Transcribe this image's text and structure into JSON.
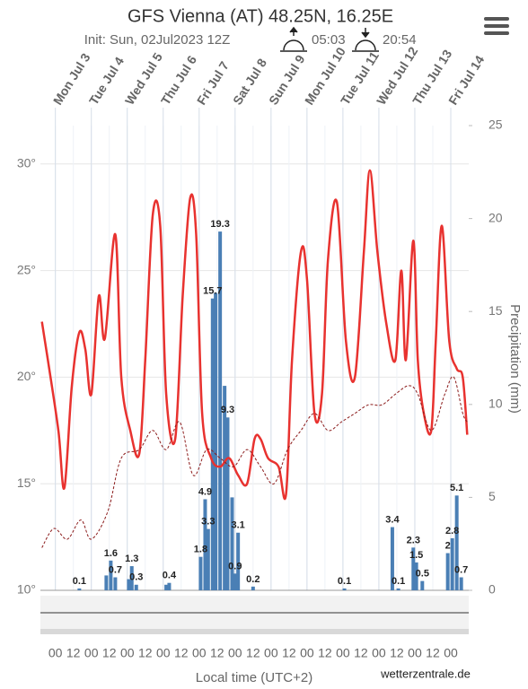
{
  "chart_data": {
    "type": "line",
    "title": "GFS Vienna (AT) 48.25N, 16.25E",
    "subtitle": "Init: Sun, 02Jul2023 12Z",
    "sunrise": "05:03",
    "sunset": "20:54",
    "x_label": "Local time (UTC+2)",
    "y2_label": "Precipitation (mm)",
    "source": "wetterzentrale.de",
    "xlim": [
      -10,
      276
    ],
    "ylim": [
      10,
      31.8
    ],
    "y2lim": [
      0,
      25
    ],
    "grid": true,
    "yticks": [
      {
        "value": 10,
        "label": "10°"
      },
      {
        "value": 15,
        "label": "15°"
      },
      {
        "value": 20,
        "label": "20°"
      },
      {
        "value": 25,
        "label": "25°"
      },
      {
        "value": 30,
        "label": "30°"
      }
    ],
    "y2ticks": [
      0,
      5,
      10,
      15,
      20,
      25
    ],
    "xticks": [
      {
        "value": 0,
        "label": "00"
      },
      {
        "value": 12,
        "label": "12"
      },
      {
        "value": 24,
        "label": "00"
      },
      {
        "value": 36,
        "label": "12"
      },
      {
        "value": 48,
        "label": "00"
      },
      {
        "value": 60,
        "label": "12"
      },
      {
        "value": 72,
        "label": "00"
      },
      {
        "value": 84,
        "label": "12"
      },
      {
        "value": 96,
        "label": "00"
      },
      {
        "value": 108,
        "label": "12"
      },
      {
        "value": 120,
        "label": "00"
      },
      {
        "value": 132,
        "label": "12"
      },
      {
        "value": 144,
        "label": "00"
      },
      {
        "value": 156,
        "label": "12"
      },
      {
        "value": 168,
        "label": "00"
      },
      {
        "value": 180,
        "label": "12"
      },
      {
        "value": 192,
        "label": "00"
      },
      {
        "value": 204,
        "label": "12"
      },
      {
        "value": 216,
        "label": "00"
      },
      {
        "value": 228,
        "label": "12"
      },
      {
        "value": 240,
        "label": "00"
      },
      {
        "value": 252,
        "label": "12"
      },
      {
        "value": 264,
        "label": "00"
      }
    ],
    "x2ticks": [
      {
        "value": 0,
        "label": "Mon Jul 3"
      },
      {
        "value": 24,
        "label": "Tue Jul 4"
      },
      {
        "value": 48,
        "label": "Wed Jul 5"
      },
      {
        "value": 72,
        "label": "Thu Jul 6"
      },
      {
        "value": 96,
        "label": "Fri Jul 7"
      },
      {
        "value": 120,
        "label": "Sat Jul 8"
      },
      {
        "value": 144,
        "label": "Sun Jul 9"
      },
      {
        "value": 168,
        "label": "Mon Jul 10"
      },
      {
        "value": 192,
        "label": "Tue Jul 11"
      },
      {
        "value": 216,
        "label": "Wed Jul 12"
      },
      {
        "value": 240,
        "label": "Thu Jul 13"
      },
      {
        "value": 264,
        "label": "Fri Jul 14"
      }
    ],
    "series": [
      {
        "type": "line",
        "color": "#e8322f",
        "x": [
          -9,
          -5,
          2,
          6,
          11,
          16,
          20,
          24,
          29,
          33,
          40,
          44,
          50,
          56,
          60,
          65,
          70,
          74,
          80,
          85,
          90,
          94,
          98,
          104,
          110,
          116,
          122,
          128,
          133,
          137,
          142,
          149,
          154,
          158,
          164,
          168,
          173,
          178,
          182,
          188,
          194,
          200,
          206,
          210,
          215,
          221,
          227,
          231,
          234,
          239,
          242,
          246,
          251,
          254,
          258,
          263,
          268,
          272,
          275
        ],
        "values": [
          22.6,
          20.8,
          17.5,
          14.8,
          19.6,
          22.1,
          21.3,
          19.2,
          23.8,
          21.8,
          26.7,
          20.0,
          17.5,
          16.4,
          20.8,
          27.6,
          27.1,
          19.2,
          17.1,
          23.8,
          28.4,
          26.7,
          18.3,
          16.2,
          15.8,
          16.2,
          15.4,
          15.0,
          17.1,
          17.1,
          16.2,
          15.8,
          14.5,
          20.8,
          25.9,
          24.6,
          18.3,
          19.2,
          25.5,
          28.2,
          21.7,
          20.0,
          25.9,
          29.7,
          25.9,
          22.5,
          20.8,
          25.0,
          20.8,
          26.4,
          20.8,
          18.3,
          17.5,
          21.7,
          27.1,
          21.7,
          20.4,
          20.0,
          17.3
        ]
      },
      {
        "type": "line",
        "color": "#8b1a1a",
        "dashed": true,
        "x": [
          -9,
          -1,
          8,
          17,
          24,
          35,
          44,
          56,
          65,
          74,
          83,
          92,
          101,
          110,
          119,
          128,
          137,
          146,
          155,
          164,
          173,
          182,
          191,
          200,
          209,
          218,
          227,
          236,
          242,
          251,
          260,
          266,
          272,
          275
        ],
        "values": [
          12.0,
          12.9,
          12.4,
          13.3,
          12.4,
          13.7,
          16.2,
          16.6,
          17.5,
          16.6,
          17.9,
          15.4,
          16.6,
          16.2,
          15.8,
          16.6,
          15.8,
          15.0,
          16.6,
          17.5,
          18.3,
          17.5,
          17.9,
          18.3,
          18.7,
          18.7,
          19.2,
          19.6,
          19.2,
          17.5,
          19.2,
          20.0,
          18.3,
          17.9
        ]
      },
      {
        "type": "bar",
        "axis": "y2",
        "color": "#4a7fb5",
        "data_labels": true,
        "x": [
          16,
          37,
          40,
          51,
          54,
          76,
          97,
          100,
          102,
          105,
          110,
          115,
          120,
          122,
          132,
          193,
          225,
          229,
          239,
          241,
          245,
          262,
          265,
          268,
          271
        ],
        "values": [
          0.1,
          1.6,
          0.7,
          1.3,
          0.3,
          0.4,
          1.8,
          4.9,
          3.3,
          15.7,
          19.3,
          9.3,
          0.9,
          3.1,
          0.2,
          0.1,
          3.4,
          0.1,
          2.3,
          1.5,
          0.5,
          2.0,
          2.8,
          5.1,
          0.7
        ]
      },
      {
        "type": "bar",
        "axis": "y2",
        "color": "#4a7fb5",
        "x": [
          34,
          49,
          74,
          107,
          113,
          118
        ],
        "values": [
          0.8,
          0.6,
          0.3,
          16,
          11,
          5
        ]
      }
    ]
  }
}
